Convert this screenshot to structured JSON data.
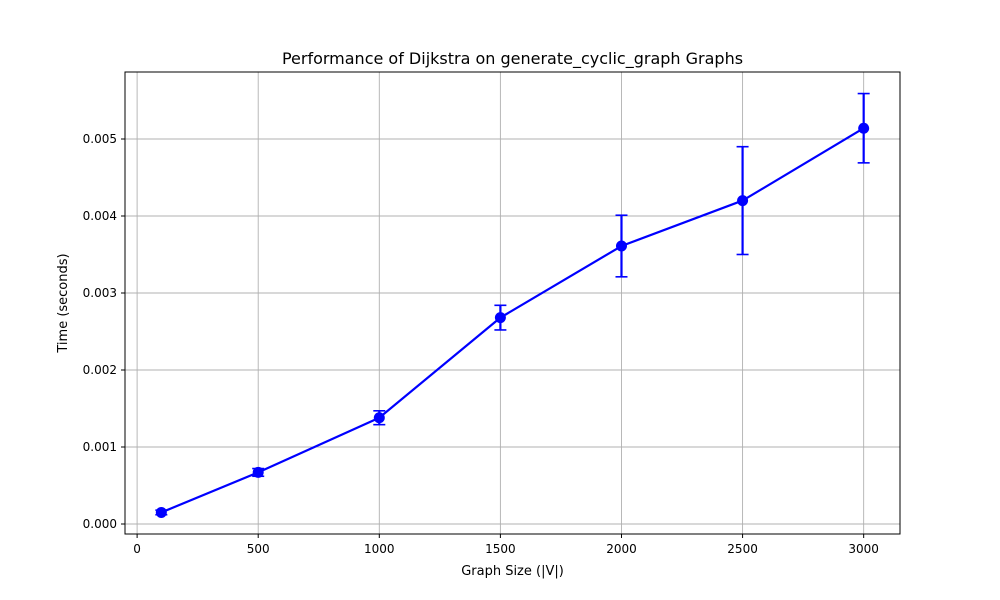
{
  "chart_data": {
    "type": "line",
    "title": "Performance of Dijkstra on generate_cyclic_graph Graphs",
    "xlabel": "Graph Size (|V|)",
    "ylabel": "Time (seconds)",
    "xlim": [
      -50,
      3150
    ],
    "ylim": [
      -0.00013,
      0.00587
    ],
    "x_ticks": [
      0,
      500,
      1000,
      1500,
      2000,
      2500,
      3000
    ],
    "x_tick_labels": [
      "0",
      "500",
      "1000",
      "1500",
      "2000",
      "2500",
      "3000"
    ],
    "y_ticks": [
      0,
      0.001,
      0.002,
      0.003,
      0.004,
      0.005
    ],
    "y_tick_labels": [
      "0.000",
      "0.001",
      "0.002",
      "0.003",
      "0.004",
      "0.005"
    ],
    "grid": true,
    "color": "#0000ff",
    "series": [
      {
        "x": [
          100,
          500,
          1000,
          1500,
          2000,
          2500,
          3000
        ],
        "y": [
          0.00015,
          0.00067,
          0.00138,
          0.00268,
          0.00361,
          0.0042,
          0.00514
        ],
        "err": [
          3e-05,
          5e-05,
          9e-05,
          0.00016,
          0.0004,
          0.0007,
          0.00045
        ]
      }
    ]
  }
}
